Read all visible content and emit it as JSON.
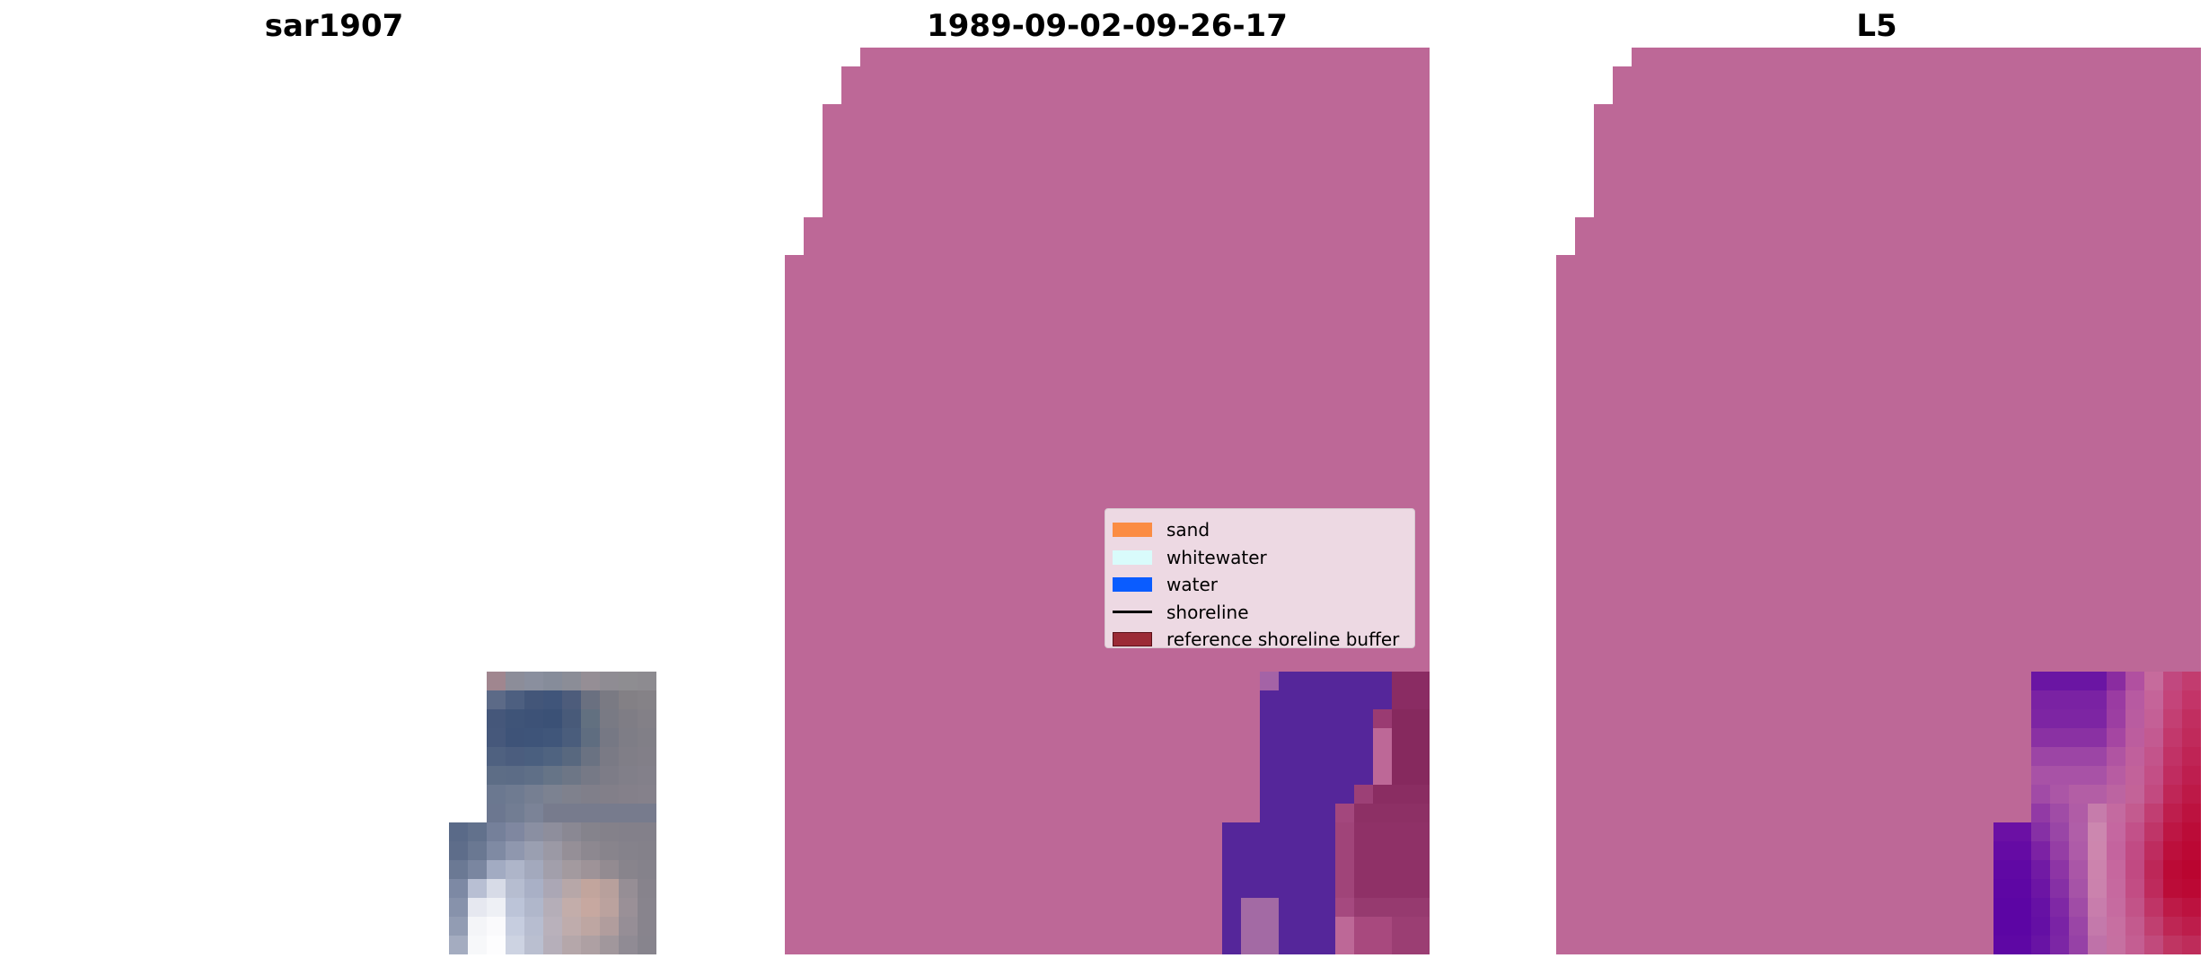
{
  "panels": [
    {
      "title": "sar1907"
    },
    {
      "title": "1989-09-02-09-26-17"
    },
    {
      "title": "L5"
    }
  ],
  "legend": {
    "items": [
      {
        "label": "sand",
        "color": "#fb8c43",
        "kind": "patch"
      },
      {
        "label": "whitewater",
        "color": "#d9fbfb",
        "kind": "patch"
      },
      {
        "label": "water",
        "color": "#0a5cff",
        "kind": "patch"
      },
      {
        "label": "shoreline",
        "color": "#000000",
        "kind": "line"
      },
      {
        "label": "reference shoreline buffer",
        "color": "#9b2a36",
        "kind": "patch"
      }
    ]
  },
  "colors": {
    "background": "#ffffff",
    "buffer_overlay": "#bd6897",
    "water_class": "#55269a",
    "sand_edge": "#8a2c63"
  }
}
